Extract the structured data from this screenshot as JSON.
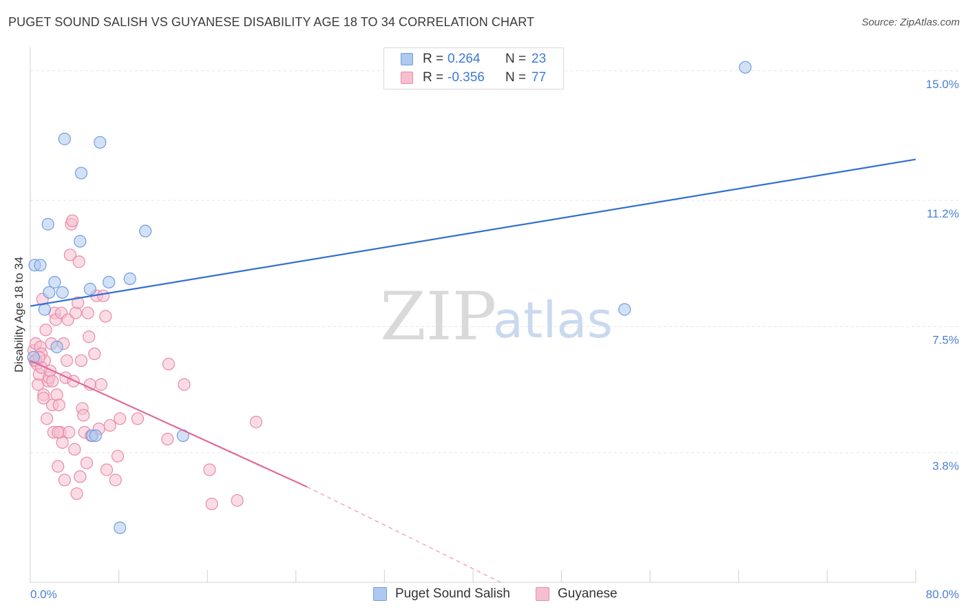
{
  "title": "PUGET SOUND SALISH VS GUYANESE DISABILITY AGE 18 TO 34 CORRELATION CHART",
  "source": "Source: ZipAtlas.com",
  "watermark": {
    "zip": "ZIP",
    "atlas": "atlas"
  },
  "colors": {
    "blue_fill": "#aec8ef",
    "blue_stroke": "#6f9de0",
    "blue_line": "#2f6fd0",
    "pink_fill": "#f6bfd0",
    "pink_stroke": "#e98aa8",
    "pink_line": "#e0689a",
    "grid": "#e3e3e3",
    "axis_label": "#4a7fd4"
  },
  "legend": {
    "rows": [
      {
        "r_label": "R =",
        "r_value": " 0.264",
        "n_label": "N =",
        "n_value": "23"
      },
      {
        "r_label": "R =",
        "r_value": "-0.356",
        "n_label": "N =",
        "n_value": "77"
      }
    ]
  },
  "bottom_legend": [
    {
      "label": "Puget Sound Salish"
    },
    {
      "label": "Guyanese"
    }
  ],
  "chart_data": {
    "type": "scatter",
    "title": "PUGET SOUND SALISH VS GUYANESE DISABILITY AGE 18 TO 34 CORRELATION CHART",
    "xlabel": "",
    "ylabel": "Disability Age 18 to 34",
    "xlim": [
      0,
      80
    ],
    "ylim": [
      0,
      15.5
    ],
    "x_tick_labels": [
      "0.0%",
      "80.0%"
    ],
    "y_ticks": [
      3.8,
      7.5,
      11.2,
      15.0
    ],
    "y_tick_labels": [
      "3.8%",
      "7.5%",
      "11.2%",
      "15.0%"
    ],
    "grid": true,
    "series": [
      {
        "name": "Puget Sound Salish",
        "color": "blue",
        "points": [
          [
            0.4,
            9.3
          ],
          [
            0.9,
            9.3
          ],
          [
            1.6,
            10.5
          ],
          [
            2.2,
            8.8
          ],
          [
            1.7,
            8.5
          ],
          [
            2.9,
            8.5
          ],
          [
            1.3,
            8.0
          ],
          [
            2.4,
            6.9
          ],
          [
            3.1,
            13.0
          ],
          [
            4.6,
            12.0
          ],
          [
            6.3,
            12.9
          ],
          [
            4.5,
            10.0
          ],
          [
            5.4,
            8.6
          ],
          [
            7.1,
            8.8
          ],
          [
            9.0,
            8.9
          ],
          [
            10.4,
            10.3
          ],
          [
            5.6,
            4.3
          ],
          [
            5.9,
            4.3
          ],
          [
            8.1,
            1.6
          ],
          [
            13.8,
            4.3
          ],
          [
            53.7,
            8.0
          ],
          [
            64.6,
            15.1
          ],
          [
            0.3,
            6.6
          ]
        ],
        "trend": {
          "x": [
            0,
            80
          ],
          "y": [
            8.1,
            12.4
          ]
        }
      },
      {
        "name": "Guyanese",
        "color": "pink",
        "points": [
          [
            0.3,
            6.8
          ],
          [
            0.4,
            6.5
          ],
          [
            0.5,
            7.0
          ],
          [
            0.6,
            6.4
          ],
          [
            0.7,
            5.8
          ],
          [
            0.8,
            6.1
          ],
          [
            0.9,
            6.9
          ],
          [
            1.0,
            6.7
          ],
          [
            1.1,
            8.3
          ],
          [
            1.2,
            5.5
          ],
          [
            1.3,
            6.5
          ],
          [
            1.4,
            7.4
          ],
          [
            1.5,
            4.8
          ],
          [
            1.6,
            5.9
          ],
          [
            1.7,
            6.0
          ],
          [
            1.8,
            6.2
          ],
          [
            1.9,
            7.0
          ],
          [
            2.0,
            5.2
          ],
          [
            2.1,
            4.4
          ],
          [
            2.2,
            7.9
          ],
          [
            2.3,
            7.7
          ],
          [
            2.4,
            5.5
          ],
          [
            2.5,
            3.4
          ],
          [
            2.6,
            5.2
          ],
          [
            2.7,
            4.4
          ],
          [
            2.8,
            7.9
          ],
          [
            2.9,
            4.1
          ],
          [
            3.0,
            7.0
          ],
          [
            3.1,
            3.0
          ],
          [
            3.2,
            6.0
          ],
          [
            3.3,
            6.5
          ],
          [
            3.4,
            7.7
          ],
          [
            3.6,
            9.6
          ],
          [
            3.7,
            10.5
          ],
          [
            3.8,
            10.6
          ],
          [
            3.9,
            5.9
          ],
          [
            4.0,
            3.9
          ],
          [
            4.1,
            7.9
          ],
          [
            4.2,
            2.6
          ],
          [
            4.3,
            8.2
          ],
          [
            4.4,
            9.4
          ],
          [
            4.5,
            3.1
          ],
          [
            4.6,
            6.5
          ],
          [
            4.7,
            5.1
          ],
          [
            4.8,
            4.9
          ],
          [
            4.9,
            4.4
          ],
          [
            5.1,
            3.5
          ],
          [
            5.2,
            7.9
          ],
          [
            5.3,
            7.2
          ],
          [
            5.4,
            5.8
          ],
          [
            5.5,
            4.3
          ],
          [
            5.8,
            6.7
          ],
          [
            6.0,
            8.4
          ],
          [
            6.2,
            4.5
          ],
          [
            6.4,
            5.8
          ],
          [
            6.6,
            8.4
          ],
          [
            6.8,
            7.8
          ],
          [
            6.9,
            3.3
          ],
          [
            7.2,
            4.6
          ],
          [
            7.7,
            3.0
          ],
          [
            7.9,
            3.7
          ],
          [
            8.1,
            4.8
          ],
          [
            9.7,
            4.8
          ],
          [
            12.4,
            4.2
          ],
          [
            12.5,
            6.4
          ],
          [
            13.9,
            5.8
          ],
          [
            16.2,
            3.3
          ],
          [
            16.4,
            2.3
          ],
          [
            18.7,
            2.4
          ],
          [
            20.4,
            4.7
          ],
          [
            1.2,
            5.4
          ],
          [
            2.5,
            4.4
          ],
          [
            3.5,
            4.4
          ],
          [
            0.5,
            6.5
          ],
          [
            1.0,
            6.3
          ],
          [
            2.0,
            5.9
          ],
          [
            0.8,
            6.6
          ]
        ],
        "trend": {
          "x": [
            0,
            25
          ],
          "y": [
            6.5,
            2.8
          ]
        },
        "trend_dashed": {
          "x": [
            25,
            42.5
          ],
          "y": [
            2.8,
            0
          ]
        }
      }
    ]
  }
}
